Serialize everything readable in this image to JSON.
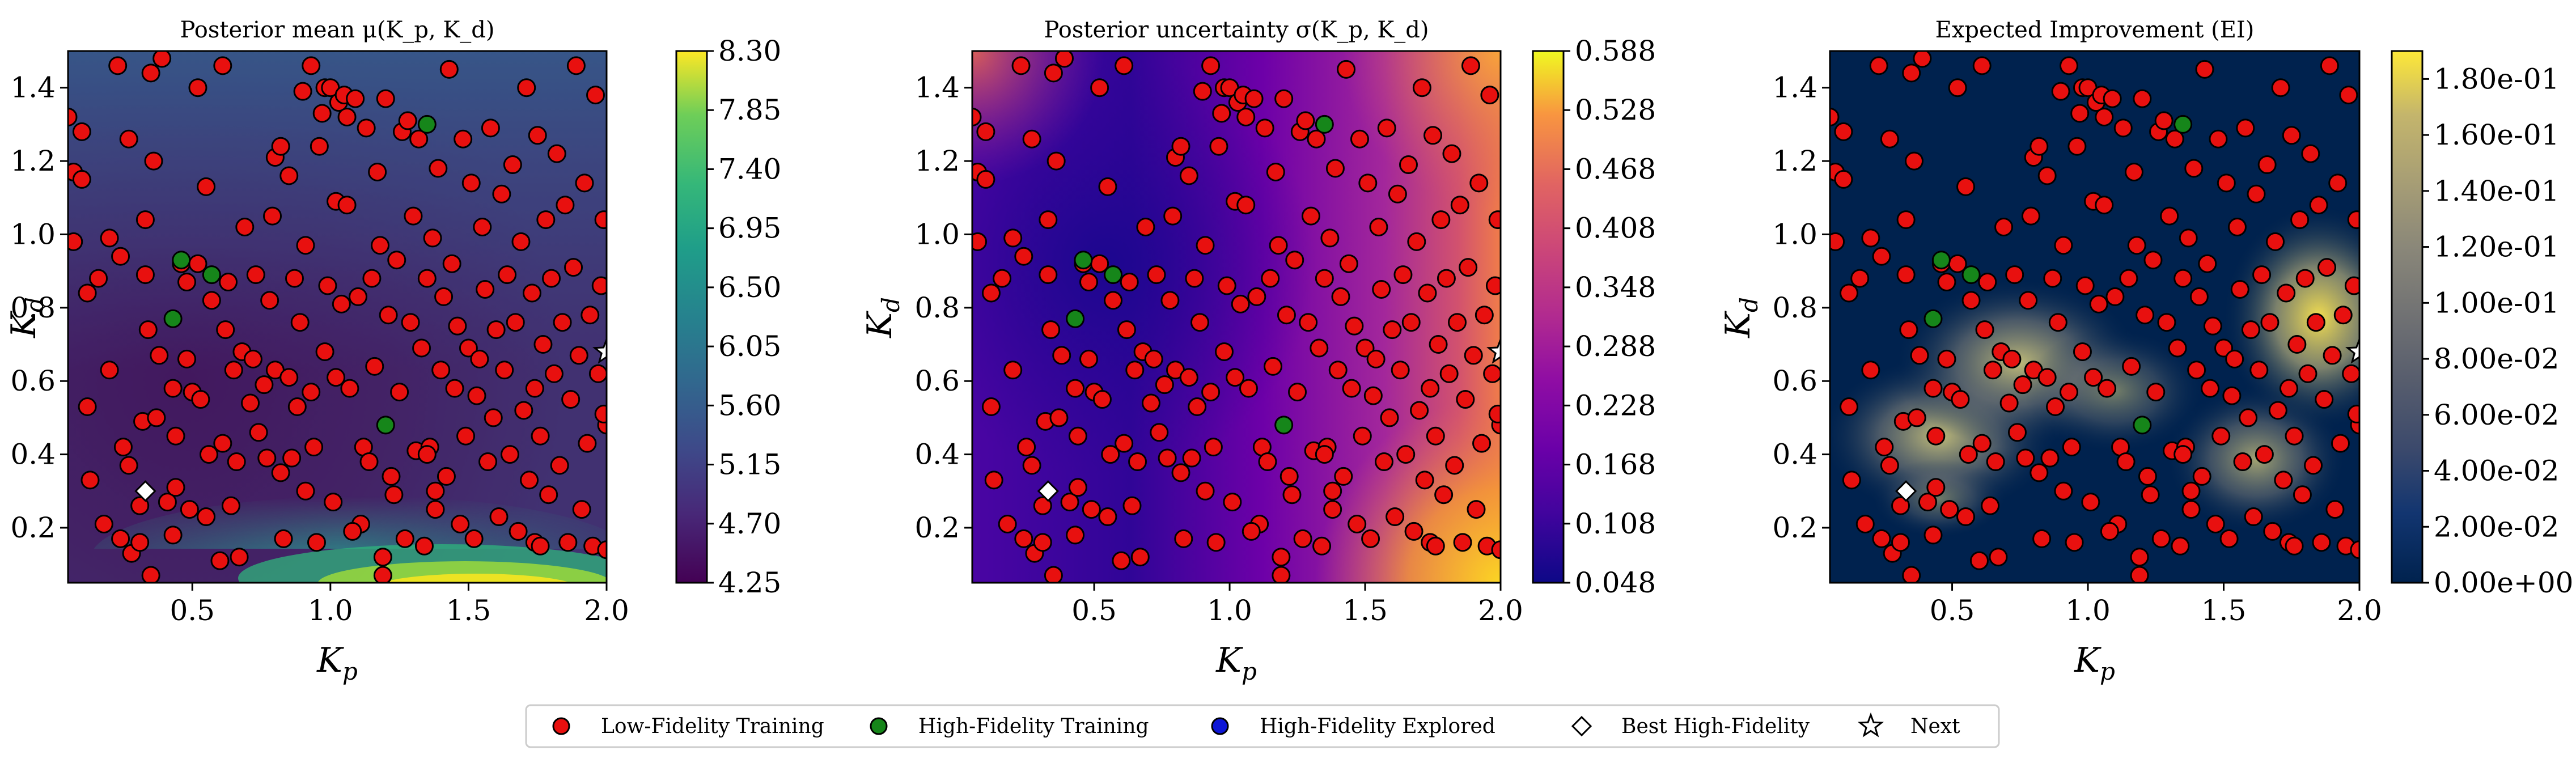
{
  "figure": {
    "legend": {
      "placement": "bottom-center",
      "entries": [
        {
          "label": "Low-Fidelity Training",
          "marker": "circle",
          "color": "#e8100f"
        },
        {
          "label": "High-Fidelity Training",
          "marker": "circle",
          "color": "#16861a"
        },
        {
          "label": "High-Fidelity Explored",
          "marker": "circle",
          "color": "#0d16d6"
        },
        {
          "label": "Best High-Fidelity",
          "marker": "diamond",
          "color": "#ffffff"
        },
        {
          "label": "Next",
          "marker": "star",
          "color": "#ffffff"
        }
      ]
    }
  },
  "chart_data": [
    {
      "type": "heatmap",
      "title": "Posterior mean μ(K_p, K_d)",
      "xlabel": "K_p",
      "ylabel": "K_d",
      "xlim": [
        0.05,
        2.0
      ],
      "ylim": [
        0.05,
        1.5
      ],
      "xticks": [
        "0.5",
        "1.0",
        "1.5",
        "2.0"
      ],
      "yticks": [
        "0.2",
        "0.4",
        "0.6",
        "0.8",
        "1.0",
        "1.2",
        "1.4"
      ],
      "colormap": "viridis",
      "colorbar": {
        "range": [
          4.25,
          8.3
        ],
        "ticks": [
          "4.25",
          "4.70",
          "5.15",
          "5.60",
          "6.05",
          "6.50",
          "6.95",
          "7.40",
          "7.85",
          "8.30"
        ]
      },
      "field_description": "low values (~4.3-4.6) across most of the domain with a minimum near K_p≈0.4, K_d≈0.5; higher values (~5.2-5.6) toward top edge; sharp rise to ~8.3 along bottom edge K_d<0.12 around K_p 1.2-1.9"
    },
    {
      "type": "heatmap",
      "title": "Posterior uncertainty σ(K_p, K_d)",
      "xlabel": "K_p",
      "ylabel": "K_d",
      "xlim": [
        0.05,
        2.0
      ],
      "ylim": [
        0.05,
        1.5
      ],
      "xticks": [
        "0.5",
        "1.0",
        "1.5",
        "2.0"
      ],
      "yticks": [
        "0.2",
        "0.4",
        "0.6",
        "0.8",
        "1.0",
        "1.2",
        "1.4"
      ],
      "colormap": "plasma",
      "colorbar": {
        "range": [
          0.048,
          0.588
        ],
        "ticks": [
          "0.048",
          "0.108",
          "0.168",
          "0.228",
          "0.288",
          "0.348",
          "0.408",
          "0.468",
          "0.528",
          "0.588"
        ]
      },
      "field_description": "lowest uncertainty (~0.05) in the center-left near K_p≈0.5, K_d≈0.9; increases toward edges; highest (~0.55-0.59) along right edge K_p≈2.0 especially at bottom-right and top-right corners"
    },
    {
      "type": "heatmap",
      "title": "Expected Improvement (EI)",
      "xlabel": "K_p",
      "ylabel": "K_d",
      "xlim": [
        0.05,
        2.0
      ],
      "ylim": [
        0.05,
        1.5
      ],
      "xticks": [
        "0.5",
        "1.0",
        "1.5",
        "2.0"
      ],
      "yticks": [
        "0.2",
        "0.4",
        "0.6",
        "0.8",
        "1.0",
        "1.2",
        "1.4"
      ],
      "colormap": "cividis",
      "colorbar": {
        "range": [
          0,
          0.19
        ],
        "ticks": [
          "0.00e+00",
          "2.00e-02",
          "4.00e-02",
          "6.00e-02",
          "8.00e-02",
          "1.00e-01",
          "1.20e-01",
          "1.40e-01",
          "1.60e-01",
          "1.80e-01"
        ]
      },
      "field_description": "near zero almost everywhere; elevated bands (~0.08-0.1) around K_p 0.3-0.8, K_d 0.3-0.7 and K_p 1.5-1.8, K_d 0.3-0.5; peak (~0.19) near right edge K_p≈2.0, K_d≈0.7-0.8"
    }
  ],
  "points": {
    "low_fidelity_training": [
      [
        0.05,
        1.32
      ],
      [
        0.07,
        0.98
      ],
      [
        0.07,
        1.17
      ],
      [
        0.1,
        1.28
      ],
      [
        0.1,
        1.15
      ],
      [
        0.12,
        0.84
      ],
      [
        0.12,
        0.53
      ],
      [
        0.13,
        0.33
      ],
      [
        0.16,
        0.88
      ],
      [
        0.18,
        0.21
      ],
      [
        0.2,
        0.99
      ],
      [
        0.2,
        0.63
      ],
      [
        0.23,
        1.46
      ],
      [
        0.24,
        0.94
      ],
      [
        0.24,
        0.17
      ],
      [
        0.25,
        0.42
      ],
      [
        0.27,
        1.26
      ],
      [
        0.27,
        0.37
      ],
      [
        0.28,
        0.13
      ],
      [
        0.31,
        0.16
      ],
      [
        0.31,
        0.26
      ],
      [
        0.32,
        0.49
      ],
      [
        0.33,
        0.89
      ],
      [
        0.33,
        1.04
      ],
      [
        0.34,
        0.74
      ],
      [
        0.35,
        1.44
      ],
      [
        0.35,
        0.07
      ],
      [
        0.36,
        1.2
      ],
      [
        0.37,
        0.5
      ],
      [
        0.38,
        0.67
      ],
      [
        0.39,
        1.48
      ],
      [
        0.41,
        0.27
      ],
      [
        0.43,
        0.58
      ],
      [
        0.43,
        0.18
      ],
      [
        0.44,
        0.31
      ],
      [
        0.44,
        0.45
      ],
      [
        0.46,
        0.92
      ],
      [
        0.48,
        0.87
      ],
      [
        0.48,
        0.66
      ],
      [
        0.49,
        0.25
      ],
      [
        0.5,
        0.57
      ],
      [
        0.52,
        1.4
      ],
      [
        0.52,
        0.92
      ],
      [
        0.53,
        0.55
      ],
      [
        0.55,
        0.23
      ],
      [
        0.55,
        1.13
      ],
      [
        0.56,
        0.4
      ],
      [
        0.57,
        0.82
      ],
      [
        0.6,
        0.11
      ],
      [
        0.61,
        1.46
      ],
      [
        0.61,
        0.43
      ],
      [
        0.62,
        0.74
      ],
      [
        0.63,
        0.87
      ],
      [
        0.64,
        0.26
      ],
      [
        0.65,
        0.63
      ],
      [
        0.66,
        0.38
      ],
      [
        0.67,
        0.12
      ],
      [
        0.68,
        0.68
      ],
      [
        0.69,
        1.02
      ],
      [
        0.71,
        0.54
      ],
      [
        0.72,
        0.66
      ],
      [
        0.73,
        0.89
      ],
      [
        0.74,
        0.46
      ],
      [
        0.76,
        0.59
      ],
      [
        0.77,
        0.39
      ],
      [
        0.78,
        0.82
      ],
      [
        0.79,
        1.05
      ],
      [
        0.8,
        1.21
      ],
      [
        0.8,
        0.63
      ],
      [
        0.82,
        1.24
      ],
      [
        0.82,
        0.35
      ],
      [
        0.83,
        0.17
      ],
      [
        0.85,
        0.61
      ],
      [
        0.85,
        1.16
      ],
      [
        0.86,
        0.39
      ],
      [
        0.87,
        0.88
      ],
      [
        0.88,
        0.53
      ],
      [
        0.89,
        0.76
      ],
      [
        0.9,
        1.39
      ],
      [
        0.91,
        0.97
      ],
      [
        0.91,
        0.3
      ],
      [
        0.93,
        1.46
      ],
      [
        0.93,
        0.57
      ],
      [
        0.94,
        0.42
      ],
      [
        0.95,
        0.16
      ],
      [
        0.96,
        1.24
      ],
      [
        0.97,
        1.33
      ],
      [
        0.98,
        0.68
      ],
      [
        0.98,
        1.4
      ],
      [
        0.99,
        0.86
      ],
      [
        1.0,
        1.4
      ],
      [
        1.01,
        0.27
      ],
      [
        1.02,
        1.09
      ],
      [
        1.02,
        0.61
      ],
      [
        1.03,
        1.36
      ],
      [
        1.04,
        0.81
      ],
      [
        1.05,
        1.38
      ],
      [
        1.06,
        1.32
      ],
      [
        1.06,
        1.08
      ],
      [
        1.07,
        0.58
      ],
      [
        1.09,
        1.37
      ],
      [
        1.1,
        0.83
      ],
      [
        1.11,
        0.21
      ],
      [
        1.12,
        0.42
      ],
      [
        1.13,
        1.29
      ],
      [
        1.14,
        0.38
      ],
      [
        1.15,
        0.88
      ],
      [
        1.16,
        0.64
      ],
      [
        1.17,
        1.17
      ],
      [
        1.18,
        0.97
      ],
      [
        1.19,
        0.12
      ],
      [
        1.2,
        1.37
      ],
      [
        1.21,
        0.78
      ],
      [
        1.22,
        0.34
      ],
      [
        1.23,
        0.29
      ],
      [
        1.24,
        0.93
      ],
      [
        1.25,
        0.57
      ],
      [
        1.26,
        1.28
      ],
      [
        1.27,
        0.17
      ],
      [
        1.28,
        1.31
      ],
      [
        1.29,
        0.76
      ],
      [
        1.3,
        1.05
      ],
      [
        1.31,
        0.41
      ],
      [
        1.32,
        1.26
      ],
      [
        1.33,
        0.69
      ],
      [
        1.34,
        0.15
      ],
      [
        1.35,
        0.88
      ],
      [
        1.36,
        0.42
      ],
      [
        1.37,
        0.99
      ],
      [
        1.38,
        0.25
      ],
      [
        1.39,
        1.18
      ],
      [
        1.4,
        0.63
      ],
      [
        1.41,
        0.83
      ],
      [
        1.42,
        0.34
      ],
      [
        1.43,
        1.45
      ],
      [
        1.44,
        0.92
      ],
      [
        1.45,
        0.58
      ],
      [
        1.46,
        0.75
      ],
      [
        1.47,
        0.21
      ],
      [
        1.48,
        1.26
      ],
      [
        1.49,
        0.45
      ],
      [
        1.5,
        0.69
      ],
      [
        1.51,
        1.14
      ],
      [
        1.52,
        0.17
      ],
      [
        1.53,
        0.56
      ],
      [
        1.54,
        0.66
      ],
      [
        1.55,
        1.02
      ],
      [
        1.56,
        0.85
      ],
      [
        1.57,
        0.38
      ],
      [
        1.58,
        1.29
      ],
      [
        1.59,
        0.5
      ],
      [
        1.6,
        0.74
      ],
      [
        1.61,
        0.23
      ],
      [
        1.62,
        1.11
      ],
      [
        1.63,
        0.63
      ],
      [
        1.64,
        0.89
      ],
      [
        1.65,
        0.4
      ],
      [
        1.66,
        1.19
      ],
      [
        1.67,
        0.76
      ],
      [
        1.68,
        0.19
      ],
      [
        1.69,
        0.98
      ],
      [
        1.7,
        0.52
      ],
      [
        1.71,
        1.4
      ],
      [
        1.72,
        0.33
      ],
      [
        1.73,
        0.84
      ],
      [
        1.74,
        0.58
      ],
      [
        1.75,
        1.27
      ],
      [
        1.76,
        0.45
      ],
      [
        1.77,
        0.7
      ],
      [
        1.78,
        1.04
      ],
      [
        1.79,
        0.29
      ],
      [
        1.8,
        0.88
      ],
      [
        1.81,
        0.62
      ],
      [
        1.82,
        1.22
      ],
      [
        1.83,
        0.37
      ],
      [
        1.84,
        0.76
      ],
      [
        1.85,
        1.08
      ],
      [
        1.86,
        0.16
      ],
      [
        1.87,
        0.55
      ],
      [
        1.88,
        0.91
      ],
      [
        1.89,
        1.46
      ],
      [
        1.9,
        0.67
      ],
      [
        1.91,
        0.25
      ],
      [
        1.92,
        1.14
      ],
      [
        1.93,
        0.43
      ],
      [
        1.94,
        0.78
      ],
      [
        1.95,
        0.15
      ],
      [
        1.96,
        1.38
      ],
      [
        1.97,
        0.62
      ],
      [
        1.98,
        0.86
      ],
      [
        1.99,
        1.04
      ],
      [
        2.0,
        0.48
      ],
      [
        2.0,
        0.14
      ],
      [
        1.99,
        0.51
      ],
      [
        1.74,
        0.16
      ],
      [
        1.76,
        0.15
      ],
      [
        1.35,
        0.4
      ],
      [
        1.38,
        0.3
      ],
      [
        1.19,
        0.07
      ],
      [
        1.08,
        0.19
      ]
    ],
    "high_fidelity_training": [
      [
        0.46,
        0.93
      ],
      [
        0.43,
        0.77
      ],
      [
        0.57,
        0.89
      ],
      [
        1.2,
        0.48
      ],
      [
        1.35,
        1.3
      ]
    ],
    "high_fidelity_explored": [],
    "best_high_fidelity": [
      0.33,
      0.3
    ],
    "next": [
      [
        2.0,
        0.68
      ]
    ]
  },
  "colors": {
    "low_fidelity": "#e8100f",
    "high_fidelity": "#16861a",
    "explored": "#0d16d6",
    "marker_edge": "#000000"
  }
}
